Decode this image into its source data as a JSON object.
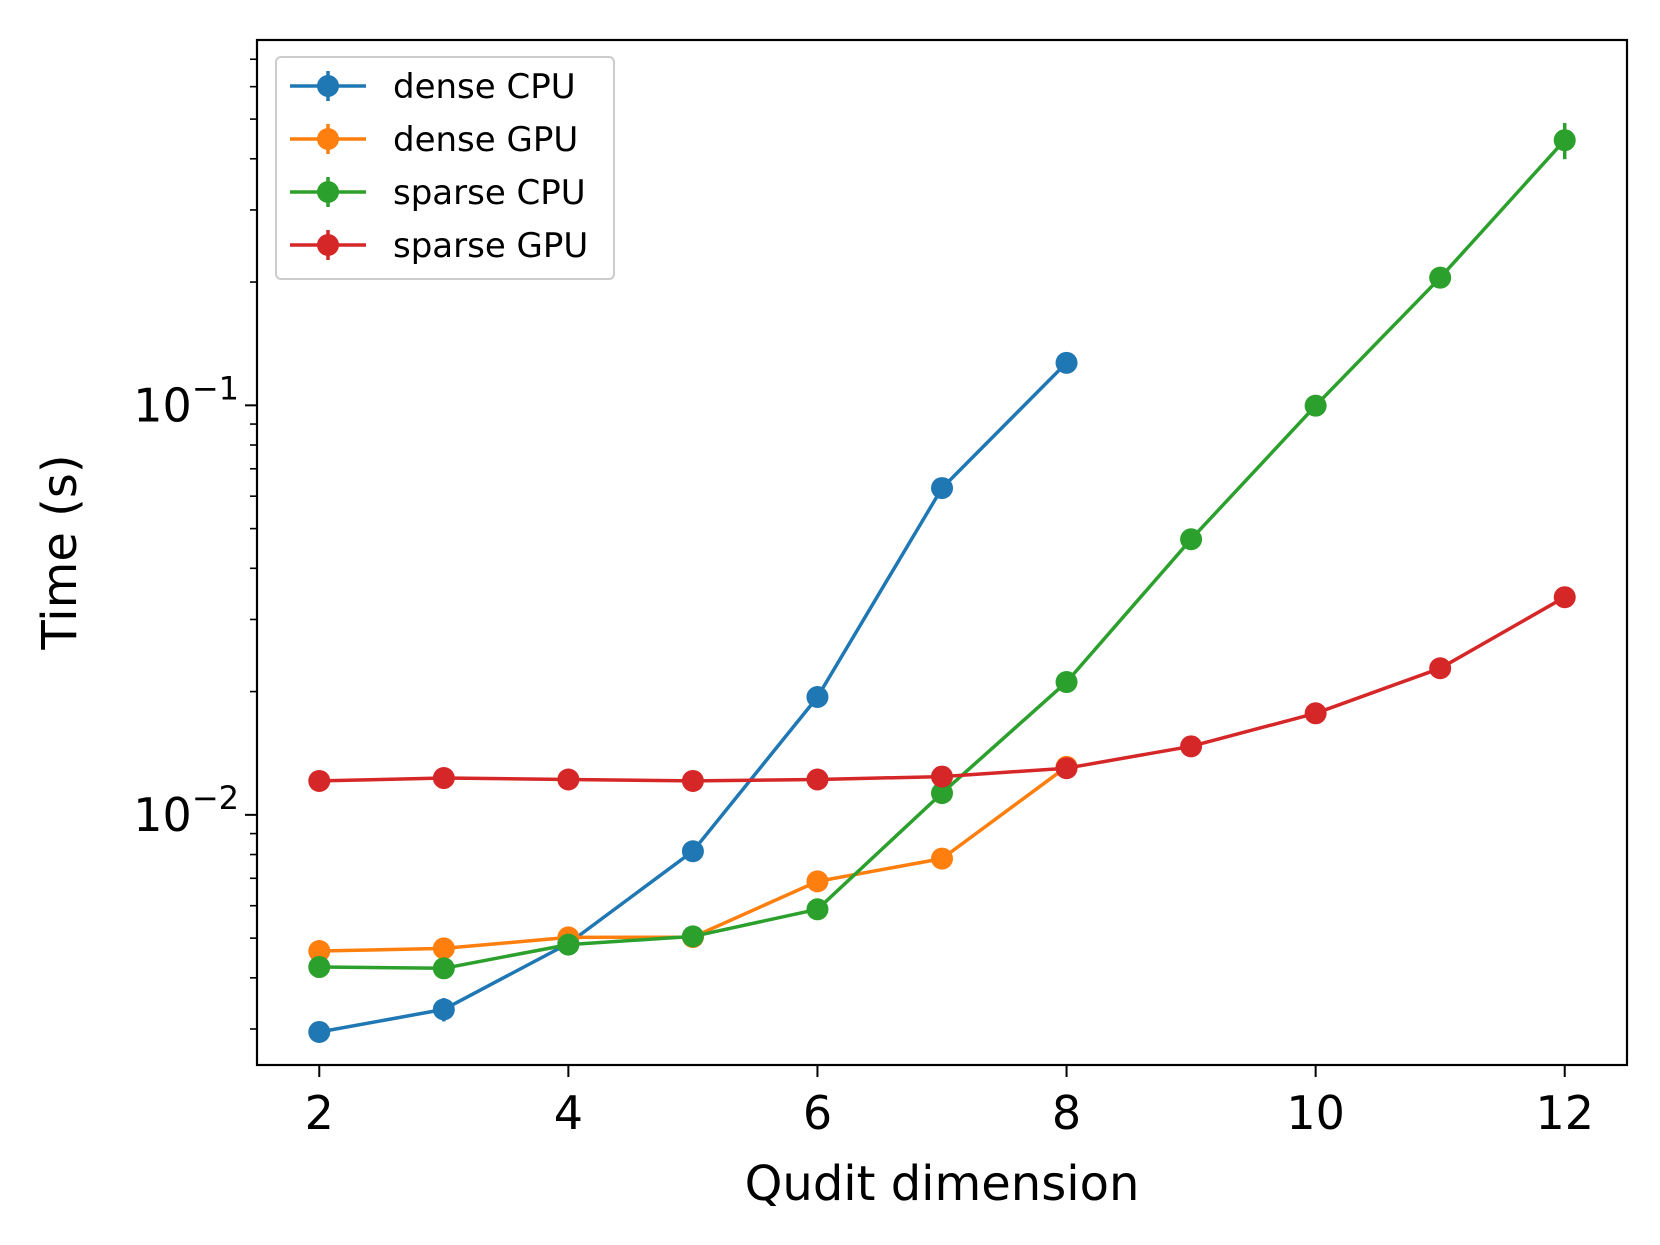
{
  "chart_data": {
    "type": "line",
    "yscale": "log",
    "xlabel": "Qudit dimension",
    "ylabel": "Time (s)",
    "xlim": [
      1.5,
      12.5
    ],
    "ylim": [
      0.00245,
      0.78
    ],
    "xticks": [
      2,
      4,
      6,
      8,
      10,
      12
    ],
    "yticks": [
      {
        "base": "10",
        "exp": "−1",
        "value": 0.1
      },
      {
        "base": "10",
        "exp": "−2",
        "value": 0.01
      }
    ],
    "legend_position": "upper-left",
    "series": [
      {
        "name": "dense CPU",
        "color": "#1f77b4",
        "x": [
          2,
          3,
          4,
          5,
          6,
          7,
          8
        ],
        "values": [
          0.00295,
          0.00335,
          0.00485,
          0.00815,
          0.0194,
          0.0628,
          0.127
        ],
        "errors": [
          0,
          0.00022,
          0,
          0,
          0,
          0,
          0
        ]
      },
      {
        "name": "dense GPU",
        "color": "#ff7f0e",
        "x": [
          2,
          3,
          4,
          5,
          6,
          7,
          8
        ],
        "values": [
          0.00465,
          0.00472,
          0.00502,
          0.00503,
          0.00688,
          0.00782,
          0.0131
        ],
        "errors": [
          0,
          0,
          0,
          0,
          0,
          0,
          0
        ]
      },
      {
        "name": "sparse CPU",
        "color": "#2ca02c",
        "x": [
          2,
          3,
          4,
          5,
          6,
          7,
          8,
          9,
          10,
          11,
          12
        ],
        "values": [
          0.00425,
          0.00422,
          0.00482,
          0.00505,
          0.00588,
          0.0113,
          0.0211,
          0.0471,
          0.0998,
          0.205,
          0.444
        ],
        "errors": [
          0,
          0,
          0,
          0,
          0.00018,
          0,
          0,
          0,
          0,
          0,
          0.045
        ]
      },
      {
        "name": "sparse GPU",
        "color": "#d62728",
        "x": [
          2,
          3,
          4,
          5,
          6,
          7,
          8,
          9,
          10,
          11,
          12
        ],
        "values": [
          0.0121,
          0.0123,
          0.0122,
          0.0121,
          0.0122,
          0.0124,
          0.013,
          0.0147,
          0.0177,
          0.0228,
          0.034
        ],
        "errors": [
          0,
          0,
          0,
          0,
          0,
          0,
          0,
          0,
          0,
          0,
          0
        ]
      }
    ]
  }
}
